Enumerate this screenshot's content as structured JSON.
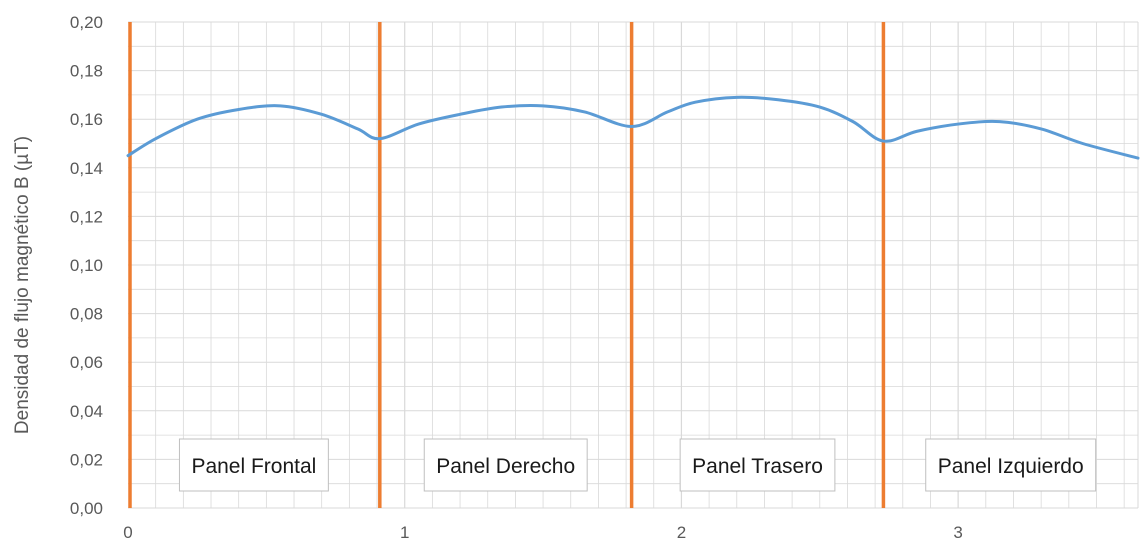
{
  "chart_data": {
    "type": "line",
    "title": "",
    "ylabel": "Densidad de flujo magnético B (µT)",
    "xlabel": "",
    "xlim": [
      0,
      3.65
    ],
    "ylim": [
      0,
      0.2
    ],
    "grid": true,
    "y_ticks": [
      "0,00",
      "0,02",
      "0,04",
      "0,06",
      "0,08",
      "0,10",
      "0,12",
      "0,14",
      "0,16",
      "0,18",
      "0,20"
    ],
    "x_ticks": [
      "0",
      "1",
      "2",
      "3"
    ],
    "colors": {
      "series": "#5b9bd5",
      "dividers": "#ed7d31",
      "grid": "#d9d9d9"
    },
    "series": [
      {
        "x": [
          0,
          0.1,
          0.25,
          0.4,
          0.55,
          0.7,
          0.83,
          0.91,
          1.05,
          1.2,
          1.35,
          1.5,
          1.65,
          1.82,
          1.95,
          2.05,
          2.2,
          2.35,
          2.5,
          2.62,
          2.73,
          2.85,
          3.0,
          3.15,
          3.3,
          3.45,
          3.65
        ],
        "values": [
          0.145,
          0.152,
          0.16,
          0.164,
          0.1655,
          0.162,
          0.156,
          0.152,
          0.158,
          0.162,
          0.165,
          0.1655,
          0.163,
          0.157,
          0.163,
          0.167,
          0.169,
          0.168,
          0.165,
          0.159,
          0.151,
          0.155,
          0.158,
          0.159,
          0.156,
          0.15,
          0.144
        ]
      }
    ],
    "dividers": [
      0,
      0.91,
      1.82,
      2.73
    ],
    "panels": [
      {
        "label": "Panel Frontal",
        "start": 0,
        "end": 0.91
      },
      {
        "label": "Panel Derecho",
        "start": 0.91,
        "end": 1.82
      },
      {
        "label": "Panel Trasero",
        "start": 1.82,
        "end": 2.73
      },
      {
        "label": "Panel Izquierdo",
        "start": 2.73,
        "end": 3.65
      }
    ]
  }
}
